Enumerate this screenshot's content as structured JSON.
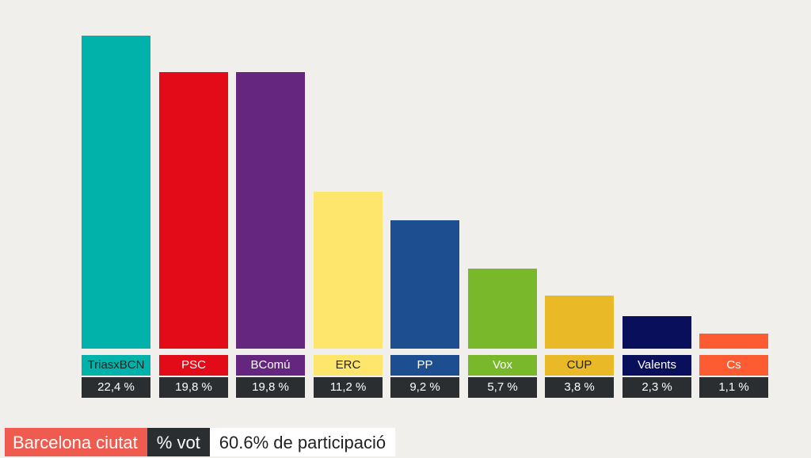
{
  "chart_data": {
    "type": "bar",
    "categories": [
      "TriasxBCN",
      "PSC",
      "BComú",
      "ERC",
      "PP",
      "Vox",
      "CUP",
      "Valents",
      "Cs"
    ],
    "values": [
      22.4,
      19.8,
      19.8,
      11.2,
      9.2,
      5.7,
      3.8,
      2.3,
      1.1
    ],
    "value_labels": [
      "22,4 %",
      "19,8 %",
      "19,8 %",
      "11,2 %",
      "9,2 %",
      "5,7 %",
      "3,8 %",
      "2,3 %",
      "1,1 %"
    ],
    "colors": [
      "#00b2a9",
      "#e30b17",
      "#65267f",
      "#fee66d",
      "#1d4f90",
      "#78b82a",
      "#e9b927",
      "#0a0f5c",
      "#fd5b31"
    ],
    "label_text_colors": [
      "#222222",
      "#ffffff",
      "#ffffff",
      "#222222",
      "#ffffff",
      "#ffffff",
      "#222222",
      "#ffffff",
      "#ffffff"
    ],
    "title": "",
    "xlabel": "",
    "ylabel": "",
    "ylim": [
      0,
      22.4
    ],
    "grid": false
  },
  "footer": {
    "region": "Barcelona ciutat",
    "metric": "% vot",
    "turnout": "60.6% de participació"
  }
}
